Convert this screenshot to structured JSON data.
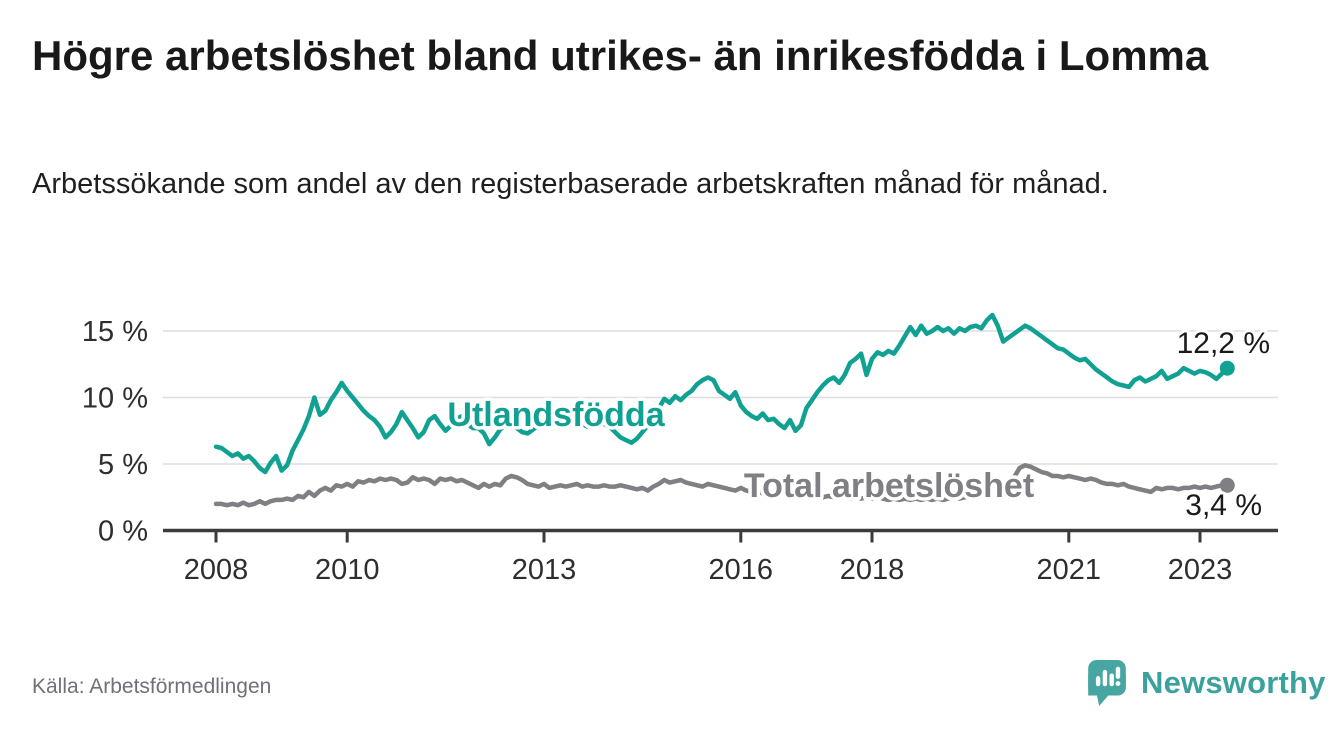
{
  "header": {
    "title": "Högre arbetslöshet bland utrikes- än inrikesfödda i Lomma",
    "subtitle": "Arbetssökande som andel av den registerbaserade arbetskraften månad för månad."
  },
  "footer": {
    "source": "Källa: Arbetsförmedlingen",
    "brand": "Newsworthy"
  },
  "colors": {
    "accent_teal": "#10a193",
    "series_gray": "#7f7f84",
    "title_text": "#191919",
    "axis_text": "#2e2e2e",
    "grid_line": "#dddddd",
    "axis_line": "#3b3b3b",
    "source_text": "#70707a",
    "brand_teal": "#3aa19d",
    "annotation_text": "#1a1a1a"
  },
  "chart_data": {
    "type": "line",
    "title": "Högre arbetslöshet bland utrikes- än inrikesfödda i Lomma",
    "subtitle": "Arbetssökande som andel av den registerbaserade arbetskraften månad för månad.",
    "x_unit": "month",
    "x_range": [
      "2008-01",
      "2023-06"
    ],
    "x_start_year": 2008,
    "x_tick_years": [
      2008,
      2010,
      2013,
      2016,
      2018,
      2021,
      2023
    ],
    "x_tick_labels": [
      "2008",
      "2010",
      "2013",
      "2016",
      "2018",
      "2021",
      "2023"
    ],
    "y_ticks": [
      0,
      5,
      10,
      15
    ],
    "y_tick_labels": [
      "0 %",
      "5 %",
      "10 %",
      "15 %"
    ],
    "ylim": [
      0,
      16.8
    ],
    "grid": "horizontal",
    "legend_position": "inline-labels",
    "series": [
      {
        "name": "Utlandsfödda",
        "color": "#10a193",
        "end_label": "12,2 %",
        "end_value": 12.2,
        "values": [
          6.3,
          6.2,
          5.9,
          5.6,
          5.8,
          5.4,
          5.6,
          5.2,
          4.7,
          4.4,
          5.1,
          5.6,
          4.5,
          4.9,
          6.0,
          6.8,
          7.6,
          8.6,
          10.0,
          8.7,
          9.0,
          9.8,
          10.4,
          11.1,
          10.5,
          10.0,
          9.5,
          9.0,
          8.6,
          8.3,
          7.8,
          7.0,
          7.4,
          8.0,
          8.9,
          8.3,
          7.7,
          7.0,
          7.4,
          8.3,
          8.6,
          8.0,
          7.5,
          7.9,
          8.4,
          8.6,
          8.0,
          7.7,
          7.7,
          7.3,
          6.5,
          7.0,
          7.6,
          8.0,
          8.1,
          7.7,
          7.4,
          7.3,
          7.6,
          7.9,
          8.2,
          8.4,
          8.0,
          7.9,
          8.3,
          8.5,
          8.2,
          8.0,
          7.8,
          8.0,
          8.2,
          8.0,
          7.8,
          7.4,
          7.0,
          6.8,
          6.6,
          6.9,
          7.4,
          7.9,
          8.4,
          9.2,
          9.9,
          9.6,
          10.1,
          9.8,
          10.2,
          10.5,
          11.0,
          11.3,
          11.5,
          11.3,
          10.5,
          10.2,
          9.9,
          10.4,
          9.4,
          8.9,
          8.6,
          8.4,
          8.8,
          8.3,
          8.4,
          8.0,
          7.7,
          8.3,
          7.5,
          7.9,
          9.2,
          9.8,
          10.4,
          10.9,
          11.3,
          11.5,
          11.1,
          11.7,
          12.6,
          12.9,
          13.3,
          11.7,
          12.9,
          13.4,
          13.2,
          13.5,
          13.3,
          13.9,
          14.6,
          15.3,
          14.7,
          15.4,
          14.8,
          15.0,
          15.3,
          15.0,
          15.2,
          14.8,
          15.2,
          15.0,
          15.3,
          15.4,
          15.2,
          15.8,
          16.2,
          15.4,
          14.2,
          14.5,
          14.8,
          15.1,
          15.4,
          15.2,
          14.9,
          14.6,
          14.3,
          14.0,
          13.7,
          13.6,
          13.3,
          13.0,
          12.8,
          12.9,
          12.5,
          12.1,
          11.8,
          11.5,
          11.2,
          11.0,
          10.9,
          10.8,
          11.3,
          11.5,
          11.2,
          11.4,
          11.6,
          12.0,
          11.4,
          11.6,
          11.8,
          12.2,
          12.0,
          11.8,
          12.0,
          11.9,
          11.7,
          11.4,
          11.8,
          12.2
        ]
      },
      {
        "name": "Total arbetslöshet",
        "color": "#7f7f84",
        "end_label": "3,4 %",
        "end_value": 3.4,
        "values": [
          2.0,
          2.0,
          1.9,
          2.0,
          1.9,
          2.1,
          1.9,
          2.0,
          2.2,
          2.0,
          2.2,
          2.3,
          2.3,
          2.4,
          2.3,
          2.6,
          2.5,
          2.9,
          2.6,
          3.0,
          3.2,
          3.0,
          3.4,
          3.3,
          3.5,
          3.3,
          3.7,
          3.6,
          3.8,
          3.7,
          3.9,
          3.8,
          3.9,
          3.8,
          3.5,
          3.6,
          4.0,
          3.8,
          3.9,
          3.8,
          3.5,
          3.9,
          3.8,
          3.9,
          3.7,
          3.8,
          3.6,
          3.4,
          3.2,
          3.5,
          3.3,
          3.5,
          3.4,
          3.9,
          4.1,
          4.0,
          3.8,
          3.5,
          3.4,
          3.3,
          3.5,
          3.2,
          3.3,
          3.4,
          3.3,
          3.4,
          3.5,
          3.3,
          3.4,
          3.3,
          3.3,
          3.4,
          3.3,
          3.3,
          3.4,
          3.3,
          3.2,
          3.1,
          3.2,
          3.0,
          3.3,
          3.5,
          3.8,
          3.6,
          3.7,
          3.8,
          3.6,
          3.5,
          3.4,
          3.3,
          3.5,
          3.4,
          3.3,
          3.2,
          3.1,
          3.0,
          3.2,
          3.0,
          2.9,
          2.9,
          2.8,
          2.9,
          2.8,
          2.7,
          2.8,
          2.7,
          2.6,
          2.7,
          2.6,
          2.7,
          2.6,
          2.5,
          2.6,
          2.5,
          2.6,
          2.5,
          2.4,
          2.5,
          2.4,
          2.5,
          2.4,
          2.5,
          2.4,
          2.3,
          2.4,
          2.3,
          2.4,
          2.3,
          2.4,
          2.3,
          2.4,
          2.3,
          2.4,
          2.3,
          2.4,
          2.5,
          2.4,
          2.5,
          2.6,
          2.5,
          2.6,
          2.7,
          2.8,
          3.0,
          3.3,
          3.6,
          4.0,
          4.7,
          4.9,
          4.8,
          4.6,
          4.4,
          4.3,
          4.1,
          4.1,
          4.0,
          4.1,
          4.0,
          3.9,
          3.8,
          3.9,
          3.8,
          3.6,
          3.5,
          3.5,
          3.4,
          3.5,
          3.3,
          3.2,
          3.1,
          3.0,
          2.9,
          3.2,
          3.1,
          3.2,
          3.2,
          3.1,
          3.2,
          3.2,
          3.3,
          3.2,
          3.3,
          3.2,
          3.3,
          3.4,
          3.4
        ]
      }
    ]
  }
}
